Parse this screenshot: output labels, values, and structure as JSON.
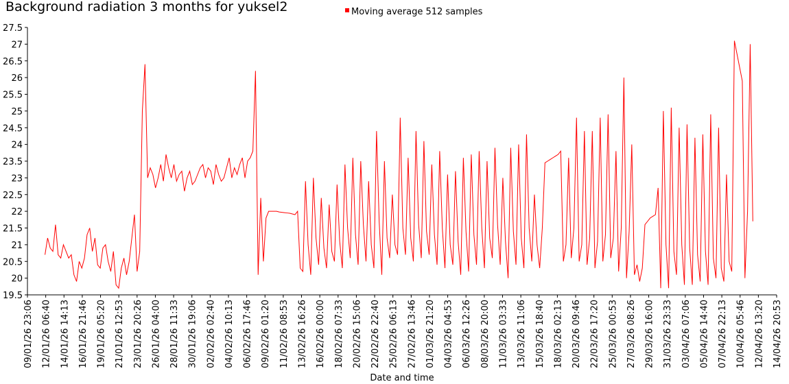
{
  "chart_data": {
    "type": "line",
    "title": "Background radiation 3 months for yuksel2",
    "x_label": "Date and time",
    "legend": "top",
    "ylim": [
      19.5,
      27.5
    ],
    "yticks": [
      19.5,
      20,
      20.5,
      21,
      21.5,
      22,
      22.5,
      23,
      23.5,
      24,
      24.5,
      25,
      25.5,
      26,
      26.5,
      27,
      27.5
    ],
    "xlim": [
      1768000000,
      1776200000
    ],
    "xticks": [
      {
        "value": 1768000000,
        "label": "09/01/26 23:06"
      },
      {
        "value": 1768200000,
        "label": "12/01/26 06:40"
      },
      {
        "value": 1768400000,
        "label": "14/01/26 14:13"
      },
      {
        "value": 1768600000,
        "label": "16/01/26 21:46"
      },
      {
        "value": 1768800000,
        "label": "19/01/26 05:20"
      },
      {
        "value": 1769000000,
        "label": "21/01/26 12:53"
      },
      {
        "value": 1769200000,
        "label": "23/01/26 20:26"
      },
      {
        "value": 1769400000,
        "label": "26/01/26 04:00"
      },
      {
        "value": 1769600000,
        "label": "28/01/26 11:33"
      },
      {
        "value": 1769800000,
        "label": "30/01/26 19:06"
      },
      {
        "value": 1770000000,
        "label": "02/02/26 02:40"
      },
      {
        "value": 1770200000,
        "label": "04/02/26 10:13"
      },
      {
        "value": 1770400000,
        "label": "06/02/26 17:46"
      },
      {
        "value": 1770600000,
        "label": "09/02/26 01:20"
      },
      {
        "value": 1770800000,
        "label": "11/02/26 08:53"
      },
      {
        "value": 1771000000,
        "label": "13/02/26 16:26"
      },
      {
        "value": 1771200000,
        "label": "16/02/26 00:00"
      },
      {
        "value": 1771400000,
        "label": "18/02/26 07:33"
      },
      {
        "value": 1771600000,
        "label": "20/02/26 15:06"
      },
      {
        "value": 1771800000,
        "label": "22/02/26 22:40"
      },
      {
        "value": 1772000000,
        "label": "25/02/26 06:13"
      },
      {
        "value": 1772200000,
        "label": "27/02/26 13:46"
      },
      {
        "value": 1772400000,
        "label": "01/03/26 21:20"
      },
      {
        "value": 1772600000,
        "label": "04/03/26 04:53"
      },
      {
        "value": 1772800000,
        "label": "06/03/26 12:26"
      },
      {
        "value": 1773000000,
        "label": "08/03/26 20:00"
      },
      {
        "value": 1773200000,
        "label": "11/03/26 03:33"
      },
      {
        "value": 1773400000,
        "label": "13/03/26 11:06"
      },
      {
        "value": 1773600000,
        "label": "15/03/26 18:40"
      },
      {
        "value": 1773800000,
        "label": "18/03/26 02:13"
      },
      {
        "value": 1774000000,
        "label": "20/03/26 09:46"
      },
      {
        "value": 1774200000,
        "label": "22/03/26 17:20"
      },
      {
        "value": 1774400000,
        "label": "25/03/26 00:53"
      },
      {
        "value": 1774600000,
        "label": "27/03/26 08:26"
      },
      {
        "value": 1774800000,
        "label": "29/03/26 16:00"
      },
      {
        "value": 1775000000,
        "label": "31/03/26 23:33"
      },
      {
        "value": 1775200000,
        "label": "03/04/26 07:06"
      },
      {
        "value": 1775400000,
        "label": "05/04/26 14:40"
      },
      {
        "value": 1775600000,
        "label": "07/04/26 22:13"
      },
      {
        "value": 1775800000,
        "label": "10/04/26 05:46"
      },
      {
        "value": 1776000000,
        "label": "12/04/26 13:20"
      },
      {
        "value": 1776200000,
        "label": "14/04/26 20:53"
      }
    ],
    "x": [
      1768192000,
      1768220800,
      1768249600,
      1768278400,
      1768307200,
      1768336000,
      1768364800,
      1768393600,
      1768422400,
      1768451200,
      1768480000,
      1768508800,
      1768537600,
      1768566400,
      1768595200,
      1768624000,
      1768652800,
      1768681600,
      1768710400,
      1768739200,
      1768768000,
      1768796800,
      1768825600,
      1768854400,
      1768883200,
      1768912000,
      1768940800,
      1768969600,
      1768998400,
      1769027200,
      1769056000,
      1769084800,
      1769113600,
      1769142400,
      1769171200,
      1769200000,
      1769228800,
      1769257600,
      1769286400,
      1769315200,
      1769344000,
      1769372800,
      1769401600,
      1769430400,
      1769459200,
      1769488000,
      1769516800,
      1769545600,
      1769574400,
      1769603200,
      1769632000,
      1769660800,
      1769689600,
      1769718400,
      1769747200,
      1769776000,
      1769804800,
      1769833600,
      1769862400,
      1769891200,
      1769920000,
      1769948800,
      1769977600,
      1770006400,
      1770035200,
      1770064000,
      1770092800,
      1770121600,
      1770150400,
      1770179200,
      1770208000,
      1770236800,
      1770265600,
      1770294400,
      1770323200,
      1770352000,
      1770380800,
      1770409600,
      1770438400,
      1770467200,
      1770496000,
      1770524800,
      1770553600,
      1770582400,
      1770611200,
      1770640000,
      1770668800,
      1770697600,
      1770726400,
      1770755200,
      1770784000,
      1770812800,
      1770841600,
      1770870400,
      1770899200,
      1770928000,
      1770956800,
      1770985600,
      1771014400,
      1771043200,
      1771072000,
      1771100800,
      1771129600,
      1771158400,
      1771187200,
      1771216000,
      1771244800,
      1771273600,
      1771302400,
      1771331200,
      1771360000,
      1771388800,
      1771417600,
      1771446400,
      1771475200,
      1771504000,
      1771532800,
      1771561600,
      1771590400,
      1771619200,
      1771648000,
      1771676800,
      1771705600,
      1771734400,
      1771763200,
      1771792000,
      1771820800,
      1771849600,
      1771878400,
      1771907200,
      1771936000,
      1771964800,
      1771993600,
      1772022400,
      1772051200,
      1772080000,
      1772108800,
      1772137600,
      1772166400,
      1772195200,
      1772224000,
      1772252800,
      1772281600,
      1772310400,
      1772339200,
      1772368000,
      1772396800,
      1772425600,
      1772454400,
      1772483200,
      1772512000,
      1772540800,
      1772569600,
      1772598400,
      1772627200,
      1772656000,
      1772684800,
      1772713600,
      1772742400,
      1772771200,
      1772800000,
      1772828800,
      1772857600,
      1772886400,
      1772915200,
      1772944000,
      1772972800,
      1773001600,
      1773030400,
      1773059200,
      1773088000,
      1773116800,
      1773145600,
      1773174400,
      1773203200,
      1773232000,
      1773260800,
      1773289600,
      1773318400,
      1773347200,
      1773376000,
      1773404800,
      1773433600,
      1773462400,
      1773491200,
      1773520000,
      1773548800,
      1773577600,
      1773606400,
      1773635200,
      1773664000,
      1773692800,
      1773721600,
      1773750400,
      1773779200,
      1773808000,
      1773836800,
      1773865600,
      1773894400,
      1773923200,
      1773952000,
      1773980800,
      1774009600,
      1774038400,
      1774067200,
      1774096000,
      1774124800,
      1774153600,
      1774182400,
      1774211200,
      1774240000,
      1774268800,
      1774297600,
      1774326400,
      1774355200,
      1774384000,
      1774412800,
      1774441600,
      1774470400,
      1774499200,
      1774528000,
      1774556800,
      1774585600,
      1774614400,
      1774643200,
      1774672000,
      1774700800,
      1774729600,
      1774758400,
      1774787200,
      1774816000,
      1774844800,
      1774873600,
      1774902400,
      1774931200,
      1774960000,
      1774988800,
      1775017600,
      1775046400,
      1775075200,
      1775104000,
      1775132800,
      1775161600,
      1775190400,
      1775219200,
      1775248000,
      1775276800,
      1775305600,
      1775334400,
      1775363200,
      1775392000,
      1775420800,
      1775449600,
      1775478400,
      1775507200,
      1775536000,
      1775564800,
      1775593600,
      1775622400,
      1775651200,
      1775680000,
      1775708800,
      1775737600,
      1775766400,
      1775795200,
      1775824000,
      1775852800,
      1775881600,
      1775910400,
      1775939200
    ],
    "series": [
      {
        "name": "Moving average 512 samples",
        "color": "#ff0000",
        "values": [
          20.7,
          21.2,
          20.9,
          20.8,
          21.6,
          20.7,
          20.6,
          21.0,
          20.8,
          20.6,
          20.7,
          20.1,
          19.9,
          20.5,
          20.3,
          20.6,
          21.3,
          21.5,
          20.8,
          21.2,
          20.4,
          20.3,
          20.9,
          21.0,
          20.5,
          20.2,
          20.8,
          19.8,
          19.7,
          20.3,
          20.6,
          20.1,
          20.5,
          21.2,
          21.9,
          20.2,
          20.8,
          25.0,
          26.4,
          23.0,
          23.3,
          23.1,
          22.7,
          23.0,
          23.4,
          22.9,
          23.7,
          23.3,
          23.0,
          23.4,
          22.9,
          23.1,
          23.2,
          22.6,
          23.0,
          23.2,
          22.8,
          22.9,
          23.1,
          23.3,
          23.4,
          23.0,
          23.3,
          23.2,
          22.8,
          23.4,
          23.1,
          22.9,
          23.0,
          23.3,
          23.6,
          23.0,
          23.3,
          23.1,
          23.4,
          23.6,
          23.0,
          23.5,
          23.6,
          23.8,
          26.2,
          20.1,
          22.4,
          20.5,
          21.8,
          22.0,
          22.0,
          22.0,
          22.0,
          21.98,
          21.97,
          21.96,
          21.95,
          21.94,
          21.92,
          21.9,
          22.0,
          20.3,
          20.2,
          22.9,
          21.0,
          20.1,
          23.0,
          21.2,
          20.4,
          22.4,
          20.9,
          20.3,
          22.2,
          20.8,
          20.5,
          22.8,
          21.1,
          20.3,
          23.4,
          21.5,
          20.6,
          23.6,
          21.3,
          20.4,
          23.5,
          21.6,
          20.5,
          22.9,
          21.0,
          20.3,
          24.4,
          21.7,
          20.1,
          23.5,
          21.2,
          20.6,
          22.5,
          21.0,
          20.7,
          24.8,
          21.5,
          20.7,
          23.6,
          21.2,
          20.5,
          24.4,
          21.6,
          20.6,
          24.1,
          21.4,
          20.7,
          23.4,
          21.3,
          20.4,
          23.8,
          21.5,
          20.3,
          23.1,
          21.0,
          20.4,
          23.2,
          21.1,
          20.1,
          23.6,
          21.4,
          20.2,
          23.7,
          21.3,
          20.4,
          23.8,
          21.5,
          20.3,
          23.5,
          21.2,
          20.6,
          23.9,
          21.6,
          20.4,
          23.0,
          21.1,
          20.0,
          23.9,
          21.4,
          20.4,
          24.0,
          21.2,
          20.3,
          24.3,
          21.5,
          20.5,
          22.5,
          21.0,
          20.3,
          21.5,
          23.45,
          23.5,
          23.55,
          23.6,
          23.65,
          23.7,
          23.8,
          20.5,
          21.0,
          23.6,
          20.6,
          21.5,
          24.8,
          20.5,
          21.0,
          24.4,
          20.4,
          21.2,
          24.4,
          20.3,
          21.1,
          24.8,
          20.5,
          21.3,
          24.9,
          20.6,
          21.2,
          23.8,
          20.2,
          21.5,
          26.0,
          20.0,
          21.4,
          24.0,
          20.1,
          20.4,
          19.9,
          20.3,
          21.6,
          21.7,
          21.8,
          21.85,
          21.9,
          22.7,
          19.7,
          25.0,
          21.0,
          19.7,
          25.1,
          20.8,
          20.1,
          24.5,
          21.0,
          19.8,
          24.6,
          20.9,
          19.8,
          24.2,
          20.7,
          19.9,
          24.3,
          20.8,
          19.8,
          24.9,
          20.6,
          20.0,
          24.5,
          20.3,
          19.9,
          23.1,
          20.5,
          20.2,
          27.1,
          26.7,
          26.3,
          25.9,
          20.0,
          22.0,
          27.0,
          21.7
        ]
      }
    ]
  }
}
